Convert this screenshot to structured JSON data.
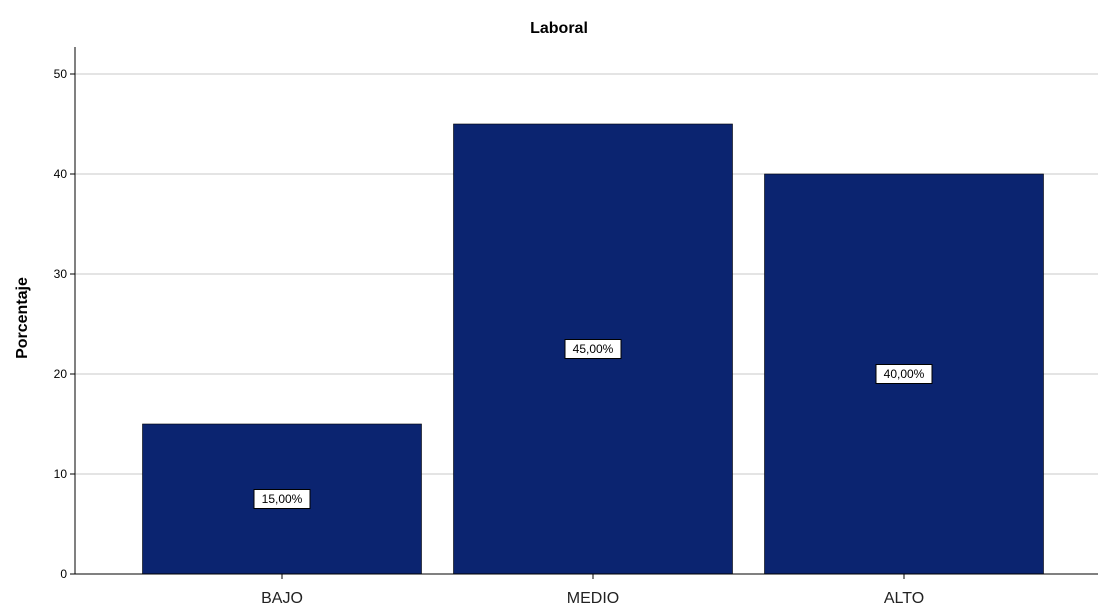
{
  "chart_data": {
    "type": "bar",
    "title": "Laboral",
    "xlabel": "",
    "ylabel": "Porcentaje",
    "categories": [
      "BAJO",
      "MEDIO",
      "ALTO"
    ],
    "values": [
      15,
      45,
      40
    ],
    "data_labels": [
      "15,00%",
      "45,00%",
      "40,00%"
    ],
    "ylim": [
      0,
      52
    ],
    "yticks": [
      0,
      10,
      20,
      30,
      40,
      50
    ],
    "grid": true,
    "bar_color": "#0b2470",
    "grid_color": "#c8c8c8"
  }
}
